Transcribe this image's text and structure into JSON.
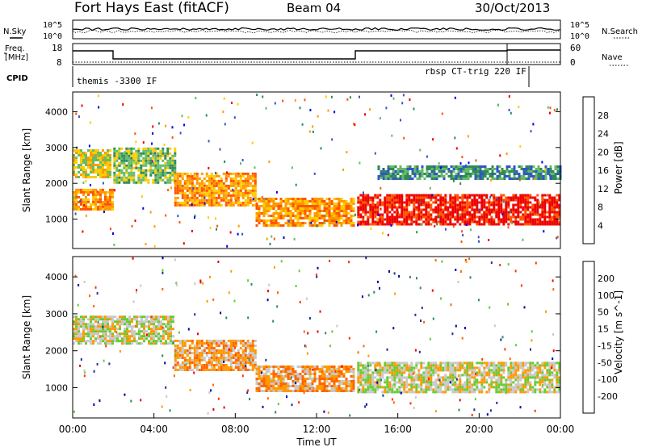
{
  "header": {
    "title": "Fort Hays East (fitACF)",
    "beam": "Beam 04",
    "date": "30/Oct/2013"
  },
  "status_panels": {
    "nsky_label": "N.Sky",
    "nsearch_label": "N.Search",
    "freq_label_1": "Freq.",
    "freq_label_2": "[MHz]",
    "nave_label": "Nave",
    "cpid_label": "CPID",
    "top_tick_high": "10^5",
    "top_tick_low": "10^0",
    "freq_tick_high": "18",
    "freq_tick_low": "8",
    "nave_tick_high": "60",
    "nave_tick_low": "0",
    "cpid_left": "themis -3300 IF",
    "cpid_right": "rbsp CT-trig 220 IF"
  },
  "chart_data": [
    {
      "type": "heatmap",
      "name": "power",
      "ylabel": "Slant Range [km]",
      "yticks": [
        1000,
        2000,
        3000,
        4000
      ],
      "ylim": [
        180,
        4550
      ],
      "colorbar_label": "Power [dB]",
      "colorbar_ticks": [
        "4",
        "8",
        "12",
        "16",
        "20",
        "24",
        "28"
      ],
      "colors": [
        "#0000ee",
        "#3355cc",
        "#2e8b57",
        "#66bb66",
        "#ffcc00",
        "#ff9900",
        "#ff5500",
        "#ee0000"
      ],
      "bands": [
        {
          "t0": 0.0,
          "t1": 1.8,
          "r0": 2150,
          "r1": 2950,
          "level": 4
        },
        {
          "t0": 0.0,
          "t1": 2.0,
          "r0": 1300,
          "r1": 1850,
          "level": 5
        },
        {
          "t0": 2.0,
          "t1": 5.0,
          "r0": 2000,
          "r1": 3000,
          "level": 3
        },
        {
          "t0": 5.0,
          "t1": 9.0,
          "r0": 1400,
          "r1": 2300,
          "level": 5
        },
        {
          "t0": 9.0,
          "t1": 13.8,
          "r0": 850,
          "r1": 1600,
          "level": 5
        },
        {
          "t0": 14.0,
          "t1": 24.0,
          "r0": 850,
          "r1": 1700,
          "level": 7
        },
        {
          "t0": 15.0,
          "t1": 24.0,
          "r0": 2150,
          "r1": 2500,
          "level": 2
        }
      ]
    },
    {
      "type": "heatmap",
      "name": "velocity",
      "ylabel": "Slant Range [km]",
      "xlabel": "Time UT",
      "yticks": [
        1000,
        2000,
        3000,
        4000
      ],
      "ylim": [
        180,
        4550
      ],
      "colorbar_label": "Velocity [m s^-1]",
      "colorbar_ticks": [
        "200",
        "100",
        "50",
        "15",
        "-15",
        "-50",
        "-100",
        "-200"
      ],
      "colors": [
        "#0000aa",
        "#1a3399",
        "#2e8b57",
        "#66cc33",
        "#c8c8c8",
        "#ff9900",
        "#ff6600",
        "#ff3300",
        "#ee0000"
      ],
      "bands": [
        {
          "t0": 0.0,
          "t1": 5.0,
          "r0": 2200,
          "r1": 2950,
          "level": 4
        },
        {
          "t0": 5.0,
          "t1": 9.0,
          "r0": 1500,
          "r1": 2300,
          "level": 5
        },
        {
          "t0": 9.0,
          "t1": 13.8,
          "r0": 900,
          "r1": 1600,
          "level": 5
        },
        {
          "t0": 14.0,
          "t1": 24.0,
          "r0": 900,
          "r1": 1700,
          "level": 4
        }
      ],
      "xticks": [
        "00:00",
        "04:00",
        "08:00",
        "12:00",
        "16:00",
        "20:00",
        "00:00"
      ]
    }
  ]
}
